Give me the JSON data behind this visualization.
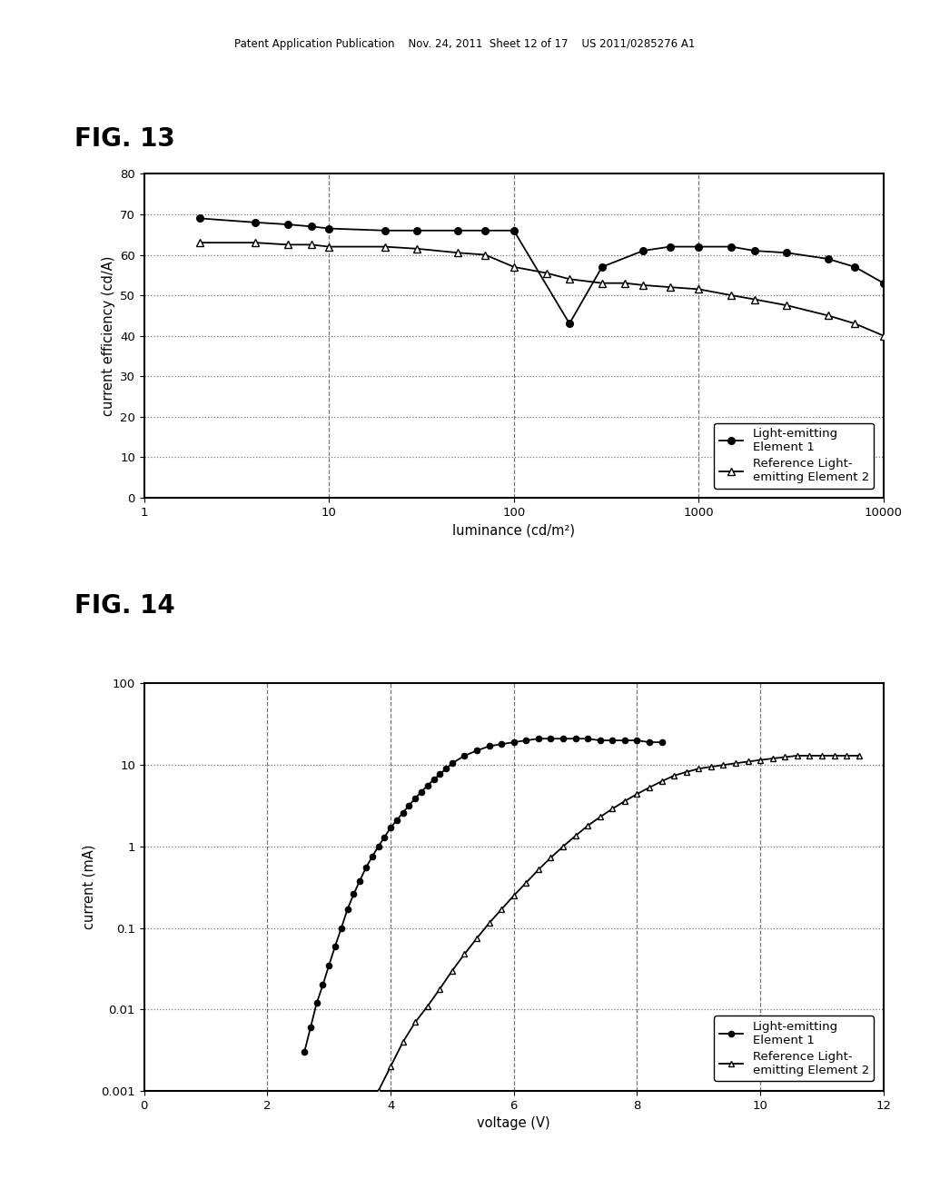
{
  "fig13": {
    "fig_label": "FIG. 13",
    "xlabel": "luminance (cd/m²)",
    "ylabel": "current efficiency (cd/A)",
    "xlim": [
      1,
      10000
    ],
    "ylim": [
      0,
      80
    ],
    "yticks": [
      0,
      10,
      20,
      30,
      40,
      50,
      60,
      70,
      80
    ],
    "elem1_x": [
      2,
      4,
      6,
      8,
      10,
      20,
      30,
      50,
      70,
      100,
      200,
      300,
      500,
      700,
      1000,
      1500,
      2000,
      3000,
      5000,
      7000,
      10000
    ],
    "elem1_y": [
      69,
      68,
      67.5,
      67,
      66.5,
      66,
      66,
      66,
      66,
      66,
      43,
      57,
      61,
      62,
      62,
      62,
      61,
      60.5,
      59,
      57,
      53
    ],
    "elem2_x": [
      2,
      4,
      6,
      8,
      10,
      20,
      30,
      50,
      70,
      100,
      150,
      200,
      300,
      400,
      500,
      700,
      1000,
      1500,
      2000,
      3000,
      5000,
      7000,
      10000
    ],
    "elem2_y": [
      63,
      63,
      62.5,
      62.5,
      62,
      62,
      61.5,
      60.5,
      60,
      57,
      55.5,
      54,
      53,
      53,
      52.5,
      52,
      51.5,
      50,
      49,
      47.5,
      45,
      43,
      40
    ],
    "legend1": "Light-emitting\nElement 1",
    "legend2": "Reference Light-\nemitting Element 2"
  },
  "fig14": {
    "fig_label": "FIG. 14",
    "xlabel": "voltage (V)",
    "ylabel": "current (mA)",
    "xlim": [
      0,
      12
    ],
    "ylim_log": [
      0.001,
      100
    ],
    "xticks": [
      0,
      2,
      4,
      6,
      8,
      10,
      12
    ],
    "elem1_x": [
      2.6,
      2.7,
      2.8,
      2.9,
      3.0,
      3.1,
      3.2,
      3.3,
      3.4,
      3.5,
      3.6,
      3.7,
      3.8,
      3.9,
      4.0,
      4.1,
      4.2,
      4.3,
      4.4,
      4.5,
      4.6,
      4.7,
      4.8,
      4.9,
      5.0,
      5.2,
      5.4,
      5.6,
      5.8,
      6.0,
      6.2,
      6.4,
      6.6,
      6.8,
      7.0,
      7.2,
      7.4,
      7.6,
      7.8,
      8.0,
      8.2,
      8.4
    ],
    "elem1_y": [
      0.003,
      0.006,
      0.012,
      0.02,
      0.035,
      0.06,
      0.1,
      0.17,
      0.26,
      0.38,
      0.55,
      0.75,
      1.0,
      1.3,
      1.7,
      2.1,
      2.6,
      3.2,
      3.9,
      4.7,
      5.6,
      6.6,
      7.7,
      9.0,
      10.5,
      13,
      15,
      17,
      18,
      19,
      20,
      21,
      21,
      21,
      21,
      21,
      20,
      20,
      20,
      20,
      19,
      19
    ],
    "elem2_x": [
      3.8,
      4.0,
      4.2,
      4.4,
      4.6,
      4.8,
      5.0,
      5.2,
      5.4,
      5.6,
      5.8,
      6.0,
      6.2,
      6.4,
      6.6,
      6.8,
      7.0,
      7.2,
      7.4,
      7.6,
      7.8,
      8.0,
      8.2,
      8.4,
      8.6,
      8.8,
      9.0,
      9.2,
      9.4,
      9.6,
      9.8,
      10.0,
      10.2,
      10.4,
      10.6,
      10.8,
      11.0,
      11.2,
      11.4,
      11.6
    ],
    "elem2_y": [
      0.001,
      0.002,
      0.004,
      0.007,
      0.011,
      0.018,
      0.03,
      0.048,
      0.075,
      0.115,
      0.17,
      0.25,
      0.36,
      0.52,
      0.73,
      1.0,
      1.35,
      1.8,
      2.3,
      2.9,
      3.6,
      4.4,
      5.3,
      6.3,
      7.4,
      8.2,
      9.0,
      9.5,
      10.0,
      10.5,
      11.0,
      11.5,
      12.0,
      12.5,
      13.0,
      13.0,
      13.0,
      13.0,
      13.0,
      13.0
    ],
    "legend1": "Light-emitting\nElement 1",
    "legend2": "Reference Light-\nemitting Element 2"
  },
  "header_text": "Patent Application Publication    Nov. 24, 2011  Sheet 12 of 17    US 2011/0285276 A1",
  "bg_color": "#ffffff",
  "text_color": "#000000"
}
